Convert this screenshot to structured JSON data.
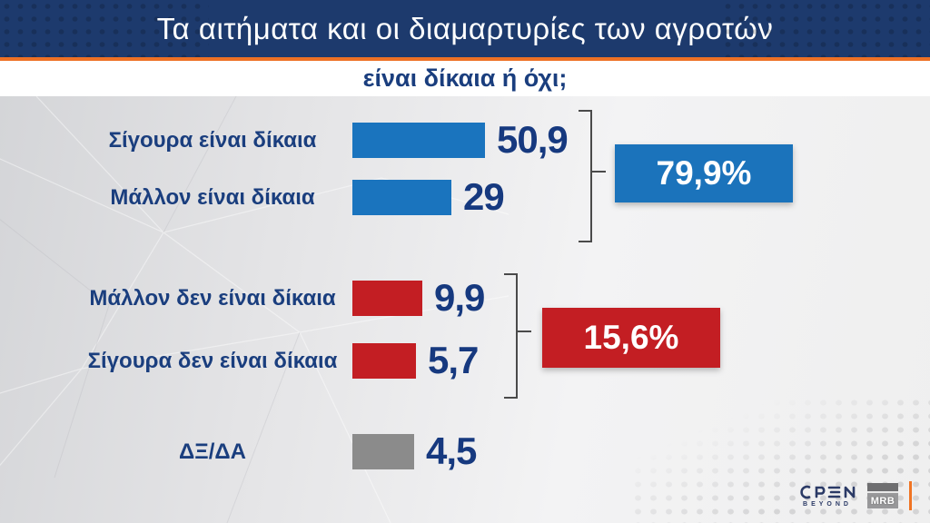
{
  "header": {
    "title": "Τα αιτήματα και οι διαμαρτυρίες των αγροτών",
    "subtitle": "είναι δίκαια ή όχι;"
  },
  "chart_data": {
    "type": "bar",
    "orientation": "horizontal",
    "title": "Τα αιτήματα και οι διαμαρτυρίες των αγροτών",
    "subtitle": "είναι δίκαια ή όχι;",
    "categories": [
      "Σίγουρα είναι δίκαια",
      "Μάλλον είναι δίκαια",
      "Μάλλον δεν είναι δίκαια",
      "Σίγουρα δεν είναι δίκαια",
      "ΔΞ/ΔΑ"
    ],
    "values": [
      50.9,
      29,
      9.9,
      5.7,
      4.5
    ],
    "value_labels": [
      "50,9",
      "29",
      "9,9",
      "5,7",
      "4,5"
    ],
    "bar_colors": [
      "#1a74be",
      "#1a74be",
      "#c31e23",
      "#c31e23",
      "#8b8b8b"
    ],
    "groups": [
      {
        "label": "79,9%",
        "color": "#1b73bb",
        "members": [
          0,
          1
        ]
      },
      {
        "label": "15,6%",
        "color": "#c31e23",
        "members": [
          2,
          3
        ]
      }
    ],
    "grid": false,
    "legend": false,
    "xlim": [
      0,
      60
    ]
  },
  "colors": {
    "header_bg": "#1d3a6d",
    "accent_orange": "#ee7125",
    "text_navy": "#1a3e7e",
    "bar_blue": "#1a74be",
    "bar_red": "#c31e23",
    "bar_gray": "#8b8b8b"
  },
  "footer": {
    "open_label": "OPEN",
    "open_sub": "BEYOND",
    "mrb_label": "MRB"
  }
}
